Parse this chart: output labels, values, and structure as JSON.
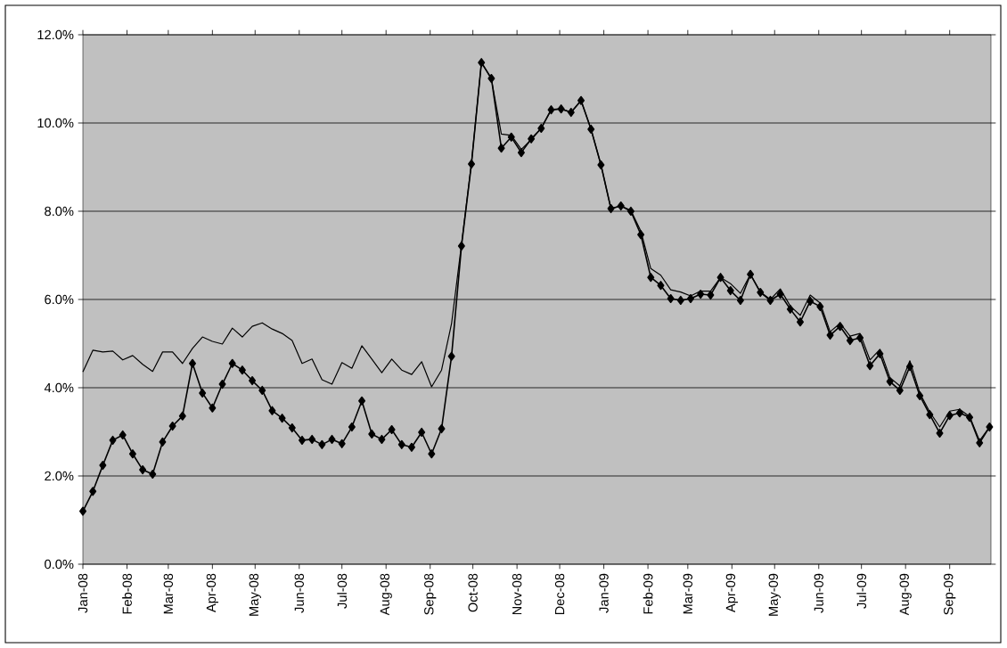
{
  "chart_data": {
    "type": "line",
    "x": [
      "2008-01-01",
      "2008-01-08",
      "2008-01-15",
      "2008-01-22",
      "2008-01-29",
      "2008-02-05",
      "2008-02-12",
      "2008-02-19",
      "2008-02-26",
      "2008-03-04",
      "2008-03-11",
      "2008-03-18",
      "2008-03-25",
      "2008-04-01",
      "2008-04-08",
      "2008-04-15",
      "2008-04-22",
      "2008-04-29",
      "2008-05-06",
      "2008-05-13",
      "2008-05-20",
      "2008-05-27",
      "2008-06-03",
      "2008-06-10",
      "2008-06-17",
      "2008-06-24",
      "2008-07-01",
      "2008-07-08",
      "2008-07-15",
      "2008-07-22",
      "2008-07-29",
      "2008-08-05",
      "2008-08-12",
      "2008-08-19",
      "2008-08-26",
      "2008-09-02",
      "2008-09-09",
      "2008-09-16",
      "2008-09-23",
      "2008-09-30",
      "2008-10-07",
      "2008-10-14",
      "2008-10-21",
      "2008-10-28",
      "2008-11-04",
      "2008-11-11",
      "2008-11-18",
      "2008-11-25",
      "2008-12-02",
      "2008-12-09",
      "2008-12-16",
      "2008-12-23",
      "2008-12-30",
      "2009-01-06",
      "2009-01-13",
      "2009-01-20",
      "2009-01-27",
      "2009-02-03",
      "2009-02-10",
      "2009-02-17",
      "2009-02-24",
      "2009-03-03",
      "2009-03-10",
      "2009-03-17",
      "2009-03-24",
      "2009-03-31",
      "2009-04-07",
      "2009-04-14",
      "2009-04-21",
      "2009-04-28",
      "2009-05-05",
      "2009-05-12",
      "2009-05-19",
      "2009-05-26",
      "2009-06-02",
      "2009-06-09",
      "2009-06-16",
      "2009-06-23",
      "2009-06-30",
      "2009-07-07",
      "2009-07-14",
      "2009-07-21",
      "2009-07-28",
      "2009-08-04",
      "2009-08-11",
      "2009-08-18",
      "2009-08-25",
      "2009-09-01",
      "2009-09-08",
      "2009-09-15",
      "2009-09-22",
      "2009-09-29"
    ],
    "series": [
      {
        "color": "#000000",
        "marker": "none",
        "values": [
          4.36,
          4.85,
          4.81,
          4.83,
          4.63,
          4.73,
          4.53,
          4.37,
          4.81,
          4.81,
          4.55,
          4.89,
          5.15,
          5.05,
          4.99,
          5.35,
          5.15,
          5.39,
          5.47,
          5.33,
          5.23,
          5.07,
          4.55,
          4.65,
          4.18,
          4.08,
          4.57,
          4.44,
          4.95,
          4.65,
          4.34,
          4.65,
          4.4,
          4.3,
          4.59,
          4.02,
          4.4,
          5.45,
          7.25,
          9.1,
          11.37,
          11.0,
          9.75,
          9.72,
          9.4,
          9.62,
          9.88,
          10.3,
          10.32,
          10.24,
          10.51,
          9.86,
          9.05,
          8.06,
          8.12,
          8.02,
          7.55,
          6.7,
          6.55,
          6.22,
          6.17,
          6.08,
          6.19,
          6.19,
          6.5,
          6.36,
          6.14,
          6.57,
          6.17,
          6.0,
          6.24,
          5.85,
          5.64,
          6.1,
          5.92,
          5.27,
          5.46,
          5.17,
          5.23,
          4.63,
          4.87,
          4.23,
          4.04,
          4.61,
          3.88,
          3.45,
          3.11,
          3.47,
          3.51,
          3.35,
          2.8,
          3.11
        ]
      },
      {
        "color": "#000000",
        "marker": "diamond",
        "values": [
          1.2,
          1.65,
          2.24,
          2.81,
          2.93,
          2.5,
          2.14,
          2.04,
          2.77,
          3.13,
          3.36,
          4.55,
          3.88,
          3.54,
          4.08,
          4.55,
          4.4,
          4.16,
          3.94,
          3.48,
          3.31,
          3.09,
          2.81,
          2.83,
          2.71,
          2.83,
          2.73,
          3.11,
          3.7,
          2.95,
          2.83,
          3.05,
          2.71,
          2.65,
          2.99,
          2.5,
          3.07,
          4.71,
          7.21,
          9.07,
          11.37,
          11.01,
          9.43,
          9.68,
          9.33,
          9.64,
          9.88,
          10.3,
          10.32,
          10.24,
          10.51,
          9.86,
          9.05,
          8.06,
          8.12,
          8.0,
          7.47,
          6.5,
          6.32,
          6.02,
          5.98,
          6.02,
          6.12,
          6.1,
          6.5,
          6.2,
          5.98,
          6.57,
          6.16,
          5.98,
          6.12,
          5.78,
          5.49,
          5.96,
          5.84,
          5.19,
          5.39,
          5.07,
          5.13,
          4.5,
          4.77,
          4.14,
          3.94,
          4.48,
          3.82,
          3.39,
          2.97,
          3.37,
          3.43,
          3.33,
          2.75,
          3.11
        ]
      }
    ],
    "xlim": [
      "2008-01-01",
      "2009-09-30"
    ],
    "xticks": [
      {
        "value": "2008-01-01",
        "label": "Jan-08"
      },
      {
        "value": "2008-02-01",
        "label": "Feb-08"
      },
      {
        "value": "2008-03-01",
        "label": "Mar-08"
      },
      {
        "value": "2008-04-01",
        "label": "Apr-08"
      },
      {
        "value": "2008-05-01",
        "label": "May-08"
      },
      {
        "value": "2008-06-01",
        "label": "Jun-08"
      },
      {
        "value": "2008-07-01",
        "label": "Jul-08"
      },
      {
        "value": "2008-08-01",
        "label": "Aug-08"
      },
      {
        "value": "2008-09-01",
        "label": "Sep-08"
      },
      {
        "value": "2008-10-01",
        "label": "Oct-08"
      },
      {
        "value": "2008-11-01",
        "label": "Nov-08"
      },
      {
        "value": "2008-12-01",
        "label": "Dec-08"
      },
      {
        "value": "2009-01-01",
        "label": "Jan-09"
      },
      {
        "value": "2009-02-01",
        "label": "Feb-09"
      },
      {
        "value": "2009-03-01",
        "label": "Mar-09"
      },
      {
        "value": "2009-04-01",
        "label": "Apr-09"
      },
      {
        "value": "2009-05-01",
        "label": "May-09"
      },
      {
        "value": "2009-06-01",
        "label": "Jun-09"
      },
      {
        "value": "2009-07-01",
        "label": "Jul-09"
      },
      {
        "value": "2009-08-01",
        "label": "Aug-09"
      },
      {
        "value": "2009-09-01",
        "label": "Sep-09"
      }
    ],
    "ylim": [
      0,
      12
    ],
    "yticks": [
      {
        "value": 0,
        "label": "0.0%"
      },
      {
        "value": 2,
        "label": "2.0%"
      },
      {
        "value": 4,
        "label": "4.0%"
      },
      {
        "value": 6,
        "label": "6.0%"
      },
      {
        "value": 8,
        "label": "8.0%"
      },
      {
        "value": 10,
        "label": "10.0%"
      },
      {
        "value": 12,
        "label": "12.0%"
      }
    ],
    "grid": "y",
    "legend": false,
    "line_style": "solid"
  }
}
